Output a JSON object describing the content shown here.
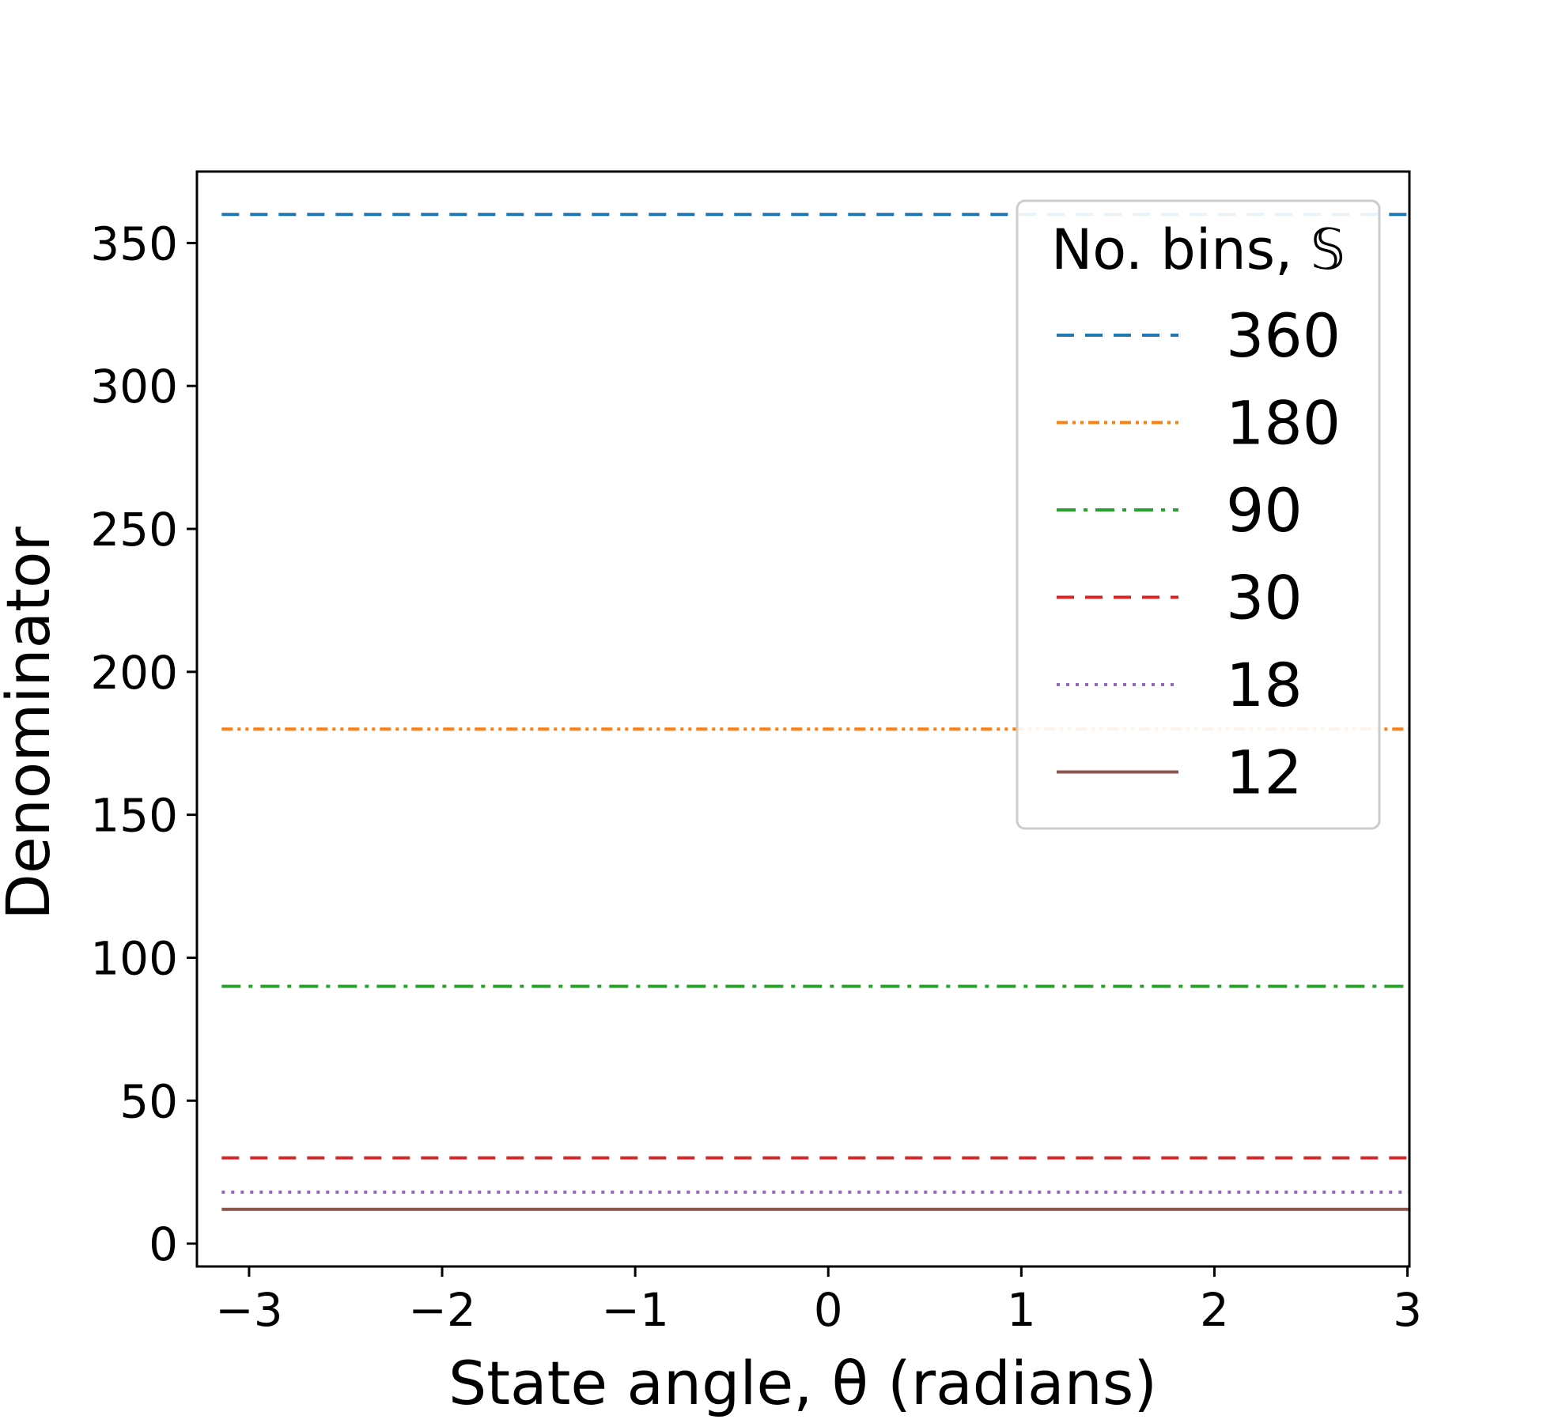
{
  "chart_data": {
    "type": "line",
    "title": "",
    "xlabel": "State angle, θ (radians)",
    "ylabel": "Denominator",
    "xlim": [
      -3.27,
      3.01
    ],
    "ylim": [
      -8,
      375
    ],
    "xticks": [
      {
        "value": -3,
        "label": "−3"
      },
      {
        "value": -2,
        "label": "−2"
      },
      {
        "value": -1,
        "label": "−1"
      },
      {
        "value": 0,
        "label": "0"
      },
      {
        "value": 1,
        "label": "1"
      },
      {
        "value": 2,
        "label": "2"
      },
      {
        "value": 3,
        "label": "3"
      }
    ],
    "yticks": [
      {
        "value": 0,
        "label": "0"
      },
      {
        "value": 50,
        "label": "50"
      },
      {
        "value": 100,
        "label": "100"
      },
      {
        "value": 150,
        "label": "150"
      },
      {
        "value": 200,
        "label": "200"
      },
      {
        "value": 250,
        "label": "250"
      },
      {
        "value": 300,
        "label": "300"
      },
      {
        "value": 350,
        "label": "350"
      }
    ],
    "grid": false,
    "legend": {
      "title": "No. bins, 𝕊",
      "position": "top-right"
    },
    "series": [
      {
        "name": "360",
        "x": [
          -3.14159,
          3.14159
        ],
        "y": [
          360,
          360
        ],
        "color": "#1f77b4",
        "style": "dashed"
      },
      {
        "name": "180",
        "x": [
          -3.14159,
          3.14159
        ],
        "y": [
          180,
          180
        ],
        "color": "#ff7f0e",
        "style": "dash-dot-dot"
      },
      {
        "name": "90",
        "x": [
          -3.14159,
          3.14159
        ],
        "y": [
          90,
          90
        ],
        "color": "#2ca02c",
        "style": "dash-dot"
      },
      {
        "name": "30",
        "x": [
          -3.14159,
          3.14159
        ],
        "y": [
          30,
          30
        ],
        "color": "#d62728",
        "style": "dashed"
      },
      {
        "name": "18",
        "x": [
          -3.14159,
          3.14159
        ],
        "y": [
          18,
          18
        ],
        "color": "#9467bd",
        "style": "dotted"
      },
      {
        "name": "12",
        "x": [
          -3.14159,
          3.14159
        ],
        "y": [
          12,
          12
        ],
        "color": "#8c564b",
        "style": "solid"
      }
    ]
  }
}
